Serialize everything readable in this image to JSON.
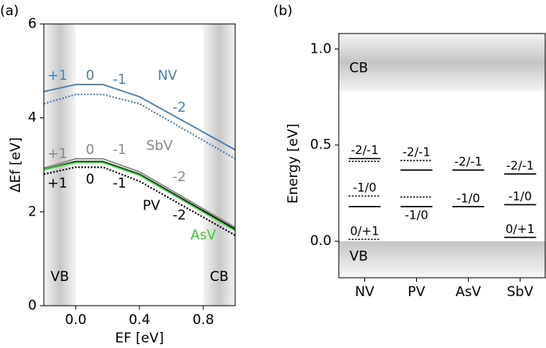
{
  "chart_data": [
    {
      "type": "line",
      "panel_label": "(a)",
      "xlabel": "EF [eV]",
      "ylabel": "ΔEf [eV]",
      "xlim": [
        -0.2,
        1.0
      ],
      "ylim": [
        0,
        6
      ],
      "xticks": [
        {
          "value": 0,
          "label": "0.0"
        },
        {
          "value": 0.4,
          "label": "0.4"
        },
        {
          "value": 0.8,
          "label": "0.8"
        }
      ],
      "yticks": [
        0,
        2,
        4,
        6
      ],
      "bands": [
        {
          "label": "VB",
          "range": [
            -0.2,
            0
          ]
        },
        {
          "label": "CB",
          "range": [
            0.8,
            1.0
          ]
        }
      ],
      "x": [
        -0.2,
        0,
        0.17,
        0.4,
        1.0
      ],
      "series": [
        {
          "color": "#4a7fb0",
          "style": "solid",
          "values": [
            4.56,
            4.71,
            4.71,
            4.45,
            3.32
          ]
        },
        {
          "color": "#4a7fb0",
          "style": "dotted",
          "values": [
            4.3,
            4.5,
            4.5,
            4.3,
            3.13
          ]
        },
        {
          "color": "#888888",
          "style": "solid",
          "values": [
            2.93,
            3.13,
            3.13,
            2.85,
            1.67
          ]
        },
        {
          "color": "#000000",
          "style": "solid",
          "values": [
            2.9,
            3.07,
            3.07,
            2.8,
            1.63
          ]
        },
        {
          "color": "#33cc33",
          "style": "solid",
          "values": [
            2.9,
            3.05,
            3.05,
            2.78,
            1.6
          ]
        },
        {
          "color": "#000000",
          "style": "dotted",
          "values": [
            2.8,
            2.95,
            2.95,
            2.65,
            1.5
          ]
        }
      ],
      "annotations": [
        {
          "text": "+1",
          "color": "#4a7fb0"
        },
        {
          "text": "0",
          "color": "#4a7fb0"
        },
        {
          "text": "-1",
          "color": "#4a7fb0"
        },
        {
          "text": "NV",
          "color": "#4a7fb0"
        },
        {
          "text": "-2",
          "color": "#4a7fb0"
        },
        {
          "text": "+1",
          "color": "#888888"
        },
        {
          "text": "0",
          "color": "#888888"
        },
        {
          "text": "-1",
          "color": "#888888"
        },
        {
          "text": "SbV",
          "color": "#888888"
        },
        {
          "text": "-2",
          "color": "#888888"
        },
        {
          "text": "+1",
          "color": "#000000"
        },
        {
          "text": "0",
          "color": "#000000"
        },
        {
          "text": "-1",
          "color": "#000000"
        },
        {
          "text": "PV",
          "color": "#000000"
        },
        {
          "text": "-2",
          "color": "#000000"
        },
        {
          "text": "AsV",
          "color": "#33cc33"
        }
      ]
    },
    {
      "type": "levels",
      "panel_label": "(b)",
      "ylabel": "Energy [eV]",
      "categories": [
        "NV",
        "PV",
        "AsV",
        "SbV"
      ],
      "ylim": [
        -0.19,
        1.08
      ],
      "yticks": [
        {
          "value": 0,
          "label": "0.0"
        },
        {
          "value": 0.5,
          "label": "0.5"
        },
        {
          "value": 1.0,
          "label": "1.0"
        }
      ],
      "bands": [
        {
          "label": "CB",
          "range": [
            0.78,
            1.08
          ]
        },
        {
          "label": "VB",
          "range": [
            -0.19,
            0
          ]
        }
      ],
      "levels": [
        {
          "category": "NV",
          "value": 0.43,
          "style": "solid",
          "label": "-2/-1"
        },
        {
          "category": "NV",
          "value": 0.415,
          "style": "dotted"
        },
        {
          "category": "NV",
          "value": 0.235,
          "style": "dotted",
          "label": "-1/0"
        },
        {
          "category": "NV",
          "value": 0.18,
          "style": "solid"
        },
        {
          "category": "NV",
          "value": 0.01,
          "style": "dotted",
          "label": "0/+1"
        },
        {
          "category": "PV",
          "value": 0.42,
          "style": "dotted",
          "label": "-2/-1"
        },
        {
          "category": "PV",
          "value": 0.37,
          "style": "solid"
        },
        {
          "category": "PV",
          "value": 0.23,
          "style": "dotted"
        },
        {
          "category": "PV",
          "value": 0.18,
          "style": "solid",
          "label": "-1/0"
        },
        {
          "category": "AsV",
          "value": 0.37,
          "style": "solid",
          "label": "-2/-1"
        },
        {
          "category": "AsV",
          "value": 0.18,
          "style": "solid",
          "label": "-1/0"
        },
        {
          "category": "SbV",
          "value": 0.35,
          "style": "solid",
          "label": "-2/-1"
        },
        {
          "category": "SbV",
          "value": 0.19,
          "style": "solid",
          "label": "-1/0"
        },
        {
          "category": "SbV",
          "value": 0.02,
          "style": "solid",
          "label": "0/+1"
        }
      ]
    }
  ]
}
